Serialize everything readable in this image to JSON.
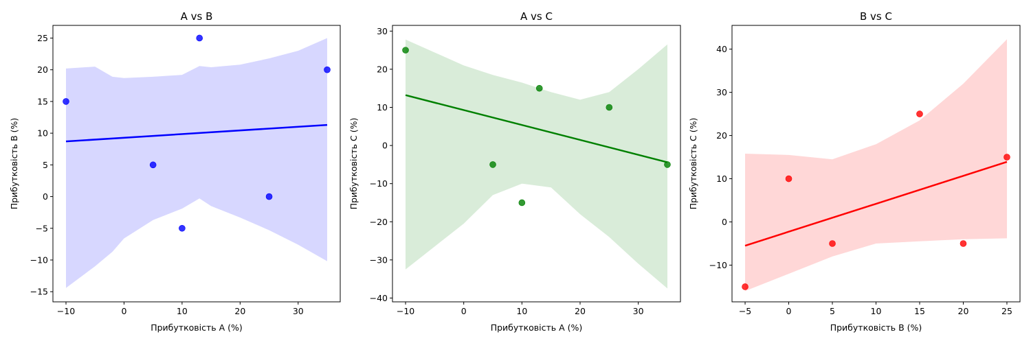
{
  "chart_data": [
    {
      "type": "scatter",
      "title": "A vs B",
      "xlabel": "Прибутковість A (%)",
      "ylabel": "Прибутковість B (%)",
      "xlim": [
        -12.25,
        37.25
      ],
      "ylim": [
        -16.6,
        27.0
      ],
      "xticks": [
        -10,
        0,
        10,
        20,
        30
      ],
      "yticks": [
        -15,
        -10,
        -5,
        0,
        5,
        10,
        15,
        20,
        25
      ],
      "color": "#0000ff",
      "band_color": "#d7d7ff",
      "x": [
        -10,
        5,
        10,
        13,
        25,
        35
      ],
      "y": [
        15,
        5,
        -5,
        25,
        0,
        20
      ],
      "regression": {
        "x": [
          -10,
          35
        ],
        "y": [
          8.7,
          11.3
        ]
      },
      "ci_band": {
        "x": [
          -10,
          -5,
          -2,
          0,
          5,
          10,
          13,
          15,
          20,
          25,
          30,
          35
        ],
        "upper": [
          20.2,
          20.5,
          18.9,
          18.7,
          18.9,
          19.2,
          20.6,
          20.4,
          20.8,
          21.8,
          23.0,
          25.0
        ],
        "lower": [
          -14.4,
          -11.0,
          -8.7,
          -6.6,
          -3.7,
          -1.9,
          -0.3,
          -1.5,
          -3.3,
          -5.3,
          -7.6,
          -10.2
        ]
      }
    },
    {
      "type": "scatter",
      "title": "A vs C",
      "xlabel": "Прибутковість A (%)",
      "ylabel": "Прибутковість C (%)",
      "xlim": [
        -12.25,
        37.25
      ],
      "ylim": [
        -41.0,
        31.5
      ],
      "xticks": [
        -10,
        0,
        10,
        20,
        30
      ],
      "yticks": [
        -40,
        -30,
        -20,
        -10,
        0,
        10,
        20,
        30
      ],
      "color": "#008000",
      "band_color": "#d9ecd9",
      "x": [
        -10,
        5,
        10,
        13,
        25,
        35
      ],
      "y": [
        25,
        -5,
        -15,
        15,
        10,
        -5
      ],
      "regression": {
        "x": [
          -10,
          35
        ],
        "y": [
          13.2,
          -4.4
        ]
      },
      "ci_band": {
        "x": [
          -10,
          0,
          5,
          10,
          15,
          20,
          25,
          30,
          35
        ],
        "upper": [
          27.8,
          21.0,
          18.5,
          16.5,
          14.0,
          12.0,
          14.0,
          20.0,
          26.5
        ],
        "lower": [
          -32.5,
          -20.5,
          -13.0,
          -10.0,
          -11.0,
          -18.0,
          -24.0,
          -31.0,
          -37.5
        ]
      }
    },
    {
      "type": "scatter",
      "title": "B vs C",
      "xlabel": "Прибутковість B (%)",
      "ylabel": "Прибутковість C (%)",
      "xlim": [
        -6.5,
        26.5
      ],
      "ylim": [
        -18.5,
        45.5
      ],
      "xticks": [
        -5,
        0,
        5,
        10,
        15,
        20,
        25
      ],
      "yticks": [
        -10,
        0,
        10,
        20,
        30,
        40
      ],
      "color": "#ff0000",
      "band_color": "#ffd7d7",
      "x": [
        -5,
        0,
        5,
        15,
        20,
        25
      ],
      "y": [
        -15,
        10,
        -5,
        25,
        -5,
        15
      ],
      "regression": {
        "x": [
          -5,
          25
        ],
        "y": [
          -5.5,
          13.9
        ]
      },
      "ci_band": {
        "x": [
          -5,
          0,
          5,
          10,
          15,
          20,
          25
        ],
        "upper": [
          15.8,
          15.5,
          14.5,
          18.0,
          23.5,
          32.0,
          42.3
        ],
        "lower": [
          -16.0,
          -12.0,
          -8.0,
          -5.0,
          -4.5,
          -4.0,
          -3.8
        ]
      }
    }
  ]
}
